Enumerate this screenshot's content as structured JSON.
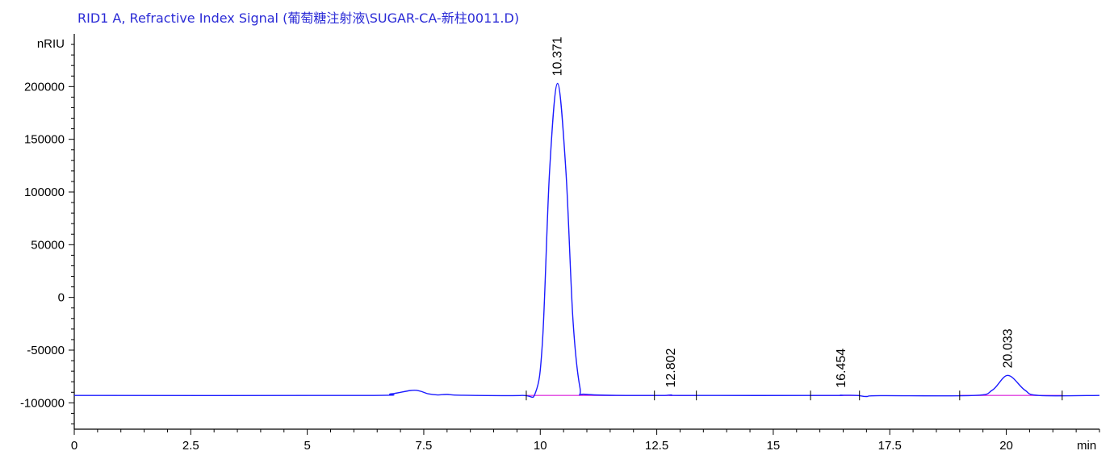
{
  "chart_data": {
    "type": "line",
    "title": "RID1 A, Refractive Index Signal (葡萄糖注射液\\SUGAR-CA-新柱0011.D)",
    "xlabel": "min",
    "ylabel": "nRIU",
    "xlim": [
      0,
      22
    ],
    "ylim": [
      -125000,
      250000
    ],
    "x_ticks": [
      0,
      2.5,
      5,
      7.5,
      10,
      12.5,
      15,
      17.5,
      20
    ],
    "x_tick_labels": [
      "0",
      "2.5",
      "5",
      "7.5",
      "10",
      "12.5",
      "15",
      "17.5",
      "20"
    ],
    "y_ticks": [
      -100000,
      -50000,
      0,
      50000,
      100000,
      150000,
      200000
    ],
    "y_tick_labels": [
      "-100000",
      "-50000",
      "0",
      "50000",
      "100000",
      "150000",
      "200000"
    ],
    "series": [
      {
        "color": "#1a1aff",
        "baseline": -93000,
        "points": [
          [
            0,
            -93000
          ],
          [
            6.2,
            -93000
          ],
          [
            6.8,
            -91500
          ],
          [
            7.3,
            -88000
          ],
          [
            7.6,
            -91500
          ],
          [
            7.8,
            -92500
          ],
          [
            8.0,
            -92000
          ],
          [
            8.3,
            -92800
          ],
          [
            9.6,
            -93000
          ],
          [
            9.9,
            -90000
          ],
          [
            10.05,
            -40000
          ],
          [
            10.2,
            120000
          ],
          [
            10.371,
            203000
          ],
          [
            10.55,
            120000
          ],
          [
            10.7,
            -20000
          ],
          [
            10.85,
            -85000
          ],
          [
            11.0,
            -92000
          ],
          [
            12.5,
            -93000
          ],
          [
            12.802,
            -92500
          ],
          [
            13.1,
            -93000
          ],
          [
            16.2,
            -93000
          ],
          [
            16.454,
            -92700
          ],
          [
            16.8,
            -93000
          ],
          [
            17.0,
            -94000
          ],
          [
            17.3,
            -93200
          ],
          [
            19.3,
            -93000
          ],
          [
            19.7,
            -88000
          ],
          [
            20.033,
            -74000
          ],
          [
            20.4,
            -88000
          ],
          [
            20.7,
            -93000
          ],
          [
            22,
            -93000
          ]
        ]
      }
    ],
    "baseline_segments": [
      {
        "color": "#e040e0",
        "x": [
          9.7,
          12.45
        ]
      },
      {
        "color": "#e040e0",
        "x": [
          12.45,
          13.35
        ]
      },
      {
        "color": "#e040e0",
        "x": [
          15.8,
          16.85
        ]
      },
      {
        "color": "#e040e0",
        "x": [
          19.0,
          21.2
        ]
      }
    ],
    "integration_marks": [
      9.7,
      12.45,
      13.35,
      15.8,
      16.85,
      19.0,
      21.2
    ],
    "peaks": [
      {
        "x": 10.371,
        "y": 203000,
        "label": "10.371"
      },
      {
        "x": 12.802,
        "y": -92500,
        "label": "12.802"
      },
      {
        "x": 16.454,
        "y": -92700,
        "label": "16.454"
      },
      {
        "x": 20.033,
        "y": -74000,
        "label": "20.033"
      }
    ],
    "grid": false,
    "legend": "none"
  }
}
